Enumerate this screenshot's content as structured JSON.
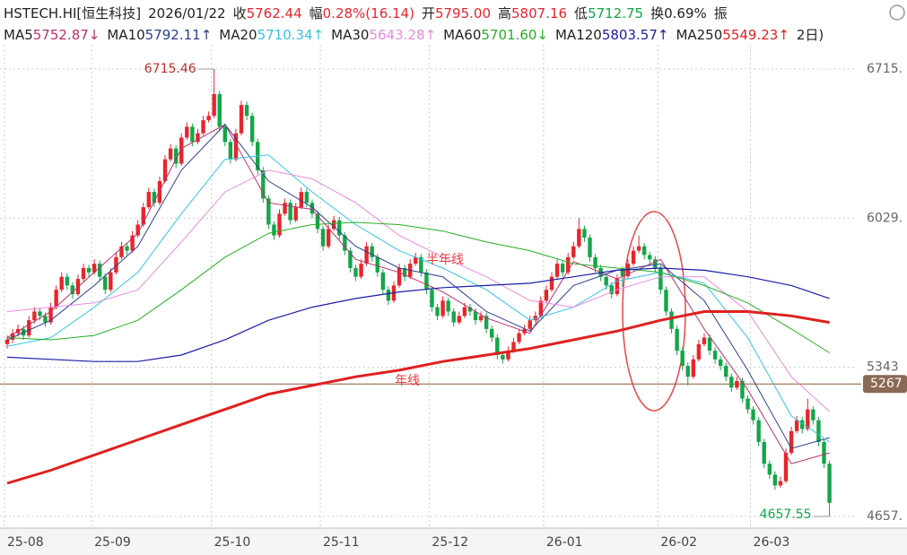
{
  "header": {
    "code": "HSTECH.HI[恒生科技]",
    "date": "2026/01/22",
    "fields": [
      {
        "label": "收",
        "value": "5762.44",
        "color": "#e8252b"
      },
      {
        "label": "幅",
        "value": "0.28%(16.14)",
        "color": "#e8252b"
      },
      {
        "label": "开",
        "value": "5795.00",
        "color": "#e8252b"
      },
      {
        "label": "高",
        "value": "5807.16",
        "color": "#e8252b"
      },
      {
        "label": "低",
        "value": "5712.75",
        "color": "#13a647"
      },
      {
        "label": "换",
        "value": "0.69%",
        "color": "#222222"
      },
      {
        "label": "振",
        "value": "",
        "color": "#222222"
      }
    ],
    "legend_tail": "2日)"
  },
  "chart_data": {
    "type": "candlestick",
    "up_color": "#e8252b",
    "down_color": "#13a647",
    "ylim": [
      4604,
      6806
    ],
    "yticks": [
      {
        "value": 6715.46,
        "label": "6715."
      },
      {
        "value": 6029.49,
        "label": "6029."
      },
      {
        "value": 5343.52,
        "label": "5343"
      },
      {
        "value": 4657.55,
        "label": "4657."
      }
    ],
    "xticks": [
      {
        "value": 0,
        "label": "25-08"
      },
      {
        "value": 16,
        "label": "25-09"
      },
      {
        "value": 38,
        "label": "25-10"
      },
      {
        "value": 58,
        "label": "25-11"
      },
      {
        "value": 78,
        "label": "25-12"
      },
      {
        "value": 99,
        "label": "26-01"
      },
      {
        "value": 120,
        "label": "26-02"
      },
      {
        "value": 137,
        "label": "26-03"
      }
    ],
    "grid": true,
    "reference_line": {
      "value": 5267,
      "label": "5267"
    },
    "annotations": [
      {
        "text": "半年线",
        "color": "#ef3b3b"
      },
      {
        "text": "年线",
        "color": "#ef3b3b"
      }
    ],
    "candles": [
      [
        5450,
        5490,
        5430,
        5470
      ],
      [
        5470,
        5520,
        5455,
        5500
      ],
      [
        5500,
        5540,
        5485,
        5520
      ],
      [
        5520,
        5535,
        5470,
        5490
      ],
      [
        5490,
        5580,
        5480,
        5560
      ],
      [
        5560,
        5620,
        5545,
        5600
      ],
      [
        5600,
        5615,
        5560,
        5580
      ],
      [
        5580,
        5595,
        5530,
        5550
      ],
      [
        5550,
        5640,
        5540,
        5620
      ],
      [
        5620,
        5720,
        5610,
        5700
      ],
      [
        5700,
        5780,
        5690,
        5760
      ],
      [
        5760,
        5775,
        5700,
        5720
      ],
      [
        5720,
        5735,
        5660,
        5680
      ],
      [
        5680,
        5770,
        5670,
        5750
      ],
      [
        5750,
        5820,
        5740,
        5800
      ],
      [
        5800,
        5815,
        5760,
        5780
      ],
      [
        5780,
        5840,
        5770,
        5820
      ],
      [
        5820,
        5835,
        5740,
        5760
      ],
      [
        5760,
        5775,
        5680,
        5700
      ],
      [
        5700,
        5800,
        5690,
        5780
      ],
      [
        5780,
        5870,
        5770,
        5850
      ],
      [
        5850,
        5920,
        5840,
        5900
      ],
      [
        5900,
        5915,
        5860,
        5880
      ],
      [
        5880,
        5970,
        5870,
        5950
      ],
      [
        5950,
        6020,
        5940,
        6000
      ],
      [
        6000,
        6100,
        5990,
        6080
      ],
      [
        6080,
        6170,
        6070,
        6150
      ],
      [
        6150,
        6165,
        6080,
        6100
      ],
      [
        6100,
        6220,
        6090,
        6200
      ],
      [
        6200,
        6320,
        6190,
        6300
      ],
      [
        6300,
        6370,
        6290,
        6350
      ],
      [
        6350,
        6365,
        6260,
        6280
      ],
      [
        6280,
        6420,
        6270,
        6400
      ],
      [
        6400,
        6470,
        6390,
        6450
      ],
      [
        6450,
        6465,
        6360,
        6380
      ],
      [
        6380,
        6440,
        6370,
        6420
      ],
      [
        6420,
        6500,
        6410,
        6480
      ],
      [
        6480,
        6520,
        6470,
        6500
      ],
      [
        6500,
        6715.46,
        6490,
        6600
      ],
      [
        6600,
        6615,
        6430,
        6450
      ],
      [
        6450,
        6465,
        6360,
        6380
      ],
      [
        6380,
        6395,
        6280,
        6300
      ],
      [
        6300,
        6440,
        6290,
        6420
      ],
      [
        6420,
        6570,
        6410,
        6550
      ],
      [
        6550,
        6565,
        6480,
        6500
      ],
      [
        6500,
        6515,
        6360,
        6380
      ],
      [
        6380,
        6395,
        6230,
        6250
      ],
      [
        6250,
        6265,
        6100,
        6120
      ],
      [
        6120,
        6135,
        5980,
        6000
      ],
      [
        6000,
        6015,
        5930,
        5950
      ],
      [
        5950,
        6070,
        5940,
        6050
      ],
      [
        6050,
        6120,
        6040,
        6100
      ],
      [
        6100,
        6115,
        6000,
        6020
      ],
      [
        6020,
        6100,
        6010,
        6080
      ],
      [
        6080,
        6170,
        6070,
        6150
      ],
      [
        6150,
        6165,
        6080,
        6100
      ],
      [
        6100,
        6115,
        6030,
        6050
      ],
      [
        6050,
        6065,
        5960,
        5980
      ],
      [
        5980,
        5995,
        5880,
        5900
      ],
      [
        5900,
        6000,
        5890,
        5980
      ],
      [
        5980,
        6040,
        5970,
        6020
      ],
      [
        6020,
        6035,
        5930,
        5950
      ],
      [
        5950,
        5965,
        5860,
        5880
      ],
      [
        5880,
        5895,
        5780,
        5800
      ],
      [
        5800,
        5815,
        5740,
        5760
      ],
      [
        5760,
        5840,
        5750,
        5820
      ],
      [
        5820,
        5920,
        5810,
        5900
      ],
      [
        5900,
        5915,
        5830,
        5850
      ],
      [
        5850,
        5865,
        5760,
        5780
      ],
      [
        5780,
        5795,
        5680,
        5700
      ],
      [
        5700,
        5715,
        5630,
        5650
      ],
      [
        5650,
        5740,
        5640,
        5720
      ],
      [
        5720,
        5820,
        5710,
        5800
      ],
      [
        5800,
        5815,
        5740,
        5760
      ],
      [
        5760,
        5840,
        5750,
        5820
      ],
      [
        5820,
        5870,
        5810,
        5850
      ],
      [
        5850,
        5865,
        5760,
        5780
      ],
      [
        5780,
        5795,
        5680,
        5700
      ],
      [
        5700,
        5715,
        5600,
        5620
      ],
      [
        5620,
        5635,
        5560,
        5580
      ],
      [
        5580,
        5670,
        5570,
        5650
      ],
      [
        5650,
        5665,
        5580,
        5600
      ],
      [
        5600,
        5615,
        5530,
        5550
      ],
      [
        5550,
        5600,
        5540,
        5580
      ],
      [
        5580,
        5640,
        5570,
        5620
      ],
      [
        5620,
        5635,
        5580,
        5600
      ],
      [
        5600,
        5615,
        5540,
        5560
      ],
      [
        5560,
        5600,
        5550,
        5580
      ],
      [
        5580,
        5595,
        5500,
        5520
      ],
      [
        5520,
        5535,
        5460,
        5480
      ],
      [
        5480,
        5495,
        5380,
        5400
      ],
      [
        5400,
        5415,
        5360,
        5380
      ],
      [
        5380,
        5440,
        5370,
        5420
      ],
      [
        5420,
        5480,
        5410,
        5460
      ],
      [
        5460,
        5520,
        5450,
        5500
      ],
      [
        5500,
        5540,
        5490,
        5520
      ],
      [
        5520,
        5580,
        5510,
        5560
      ],
      [
        5560,
        5600,
        5550,
        5580
      ],
      [
        5580,
        5670,
        5570,
        5650
      ],
      [
        5650,
        5720,
        5640,
        5700
      ],
      [
        5700,
        5780,
        5690,
        5760
      ],
      [
        5760,
        5840,
        5750,
        5820
      ],
      [
        5820,
        5835,
        5760,
        5780
      ],
      [
        5780,
        5870,
        5770,
        5850
      ],
      [
        5850,
        5920,
        5840,
        5900
      ],
      [
        5900,
        6030,
        5890,
        5980
      ],
      [
        5980,
        5995,
        5920,
        5940
      ],
      [
        5940,
        5955,
        5830,
        5850
      ],
      [
        5850,
        5865,
        5780,
        5800
      ],
      [
        5800,
        5815,
        5740,
        5760
      ],
      [
        5760,
        5775,
        5700,
        5720
      ],
      [
        5720,
        5735,
        5660,
        5680
      ],
      [
        5680,
        5770,
        5670,
        5750
      ],
      [
        5795,
        5807.16,
        5712.75,
        5762.44
      ],
      [
        5762.44,
        5840,
        5750,
        5820
      ],
      [
        5820,
        5900,
        5810,
        5880
      ],
      [
        5880,
        5950,
        5870,
        5900
      ],
      [
        5900,
        5915,
        5840,
        5860
      ],
      [
        5860,
        5875,
        5820,
        5840
      ],
      [
        5840,
        5855,
        5780,
        5800
      ],
      [
        5800,
        5815,
        5680,
        5700
      ],
      [
        5700,
        5715,
        5580,
        5600
      ],
      [
        5600,
        5615,
        5500,
        5520
      ],
      [
        5520,
        5535,
        5400,
        5420
      ],
      [
        5420,
        5435,
        5330,
        5350
      ],
      [
        5350,
        5365,
        5260,
        5300
      ],
      [
        5300,
        5400,
        5290,
        5380
      ],
      [
        5380,
        5470,
        5370,
        5450
      ],
      [
        5450,
        5500,
        5440,
        5480
      ],
      [
        5480,
        5495,
        5400,
        5420
      ],
      [
        5420,
        5435,
        5360,
        5380
      ],
      [
        5380,
        5395,
        5330,
        5350
      ],
      [
        5350,
        5365,
        5280,
        5300
      ],
      [
        5300,
        5315,
        5230,
        5250
      ],
      [
        5250,
        5300,
        5240,
        5280
      ],
      [
        5280,
        5295,
        5180,
        5200
      ],
      [
        5200,
        5215,
        5130,
        5150
      ],
      [
        5150,
        5165,
        5080,
        5100
      ],
      [
        5100,
        5115,
        4980,
        5000
      ],
      [
        5000,
        5015,
        4880,
        4900
      ],
      [
        4900,
        4915,
        4830,
        4850
      ],
      [
        4850,
        4865,
        4780,
        4800
      ],
      [
        4800,
        4840,
        4790,
        4820
      ],
      [
        4820,
        4970,
        4810,
        4950
      ],
      [
        4950,
        5070,
        4940,
        5050
      ],
      [
        5050,
        5120,
        5040,
        5100
      ],
      [
        5100,
        5115,
        5040,
        5060
      ],
      [
        5060,
        5200,
        5050,
        5150
      ],
      [
        5150,
        5165,
        5080,
        5100
      ],
      [
        5100,
        5115,
        4980,
        5000
      ],
      [
        5000,
        5015,
        4880,
        4900
      ],
      [
        4900,
        4915,
        4657.55,
        4720
      ]
    ],
    "series": [
      {
        "name": "MA5",
        "legend_value": "5752.87",
        "trend": "↓",
        "color": "#b8306e",
        "width": 1,
        "x": [
          0,
          8,
          16,
          24,
          32,
          40,
          48,
          56,
          64,
          72,
          80,
          88,
          96,
          104,
          112,
          120,
          128,
          136,
          144,
          151
        ],
        "values": [
          5480,
          5600,
          5780,
          5960,
          6350,
          6460,
          6100,
          6070,
          5840,
          5780,
          5690,
          5570,
          5500,
          5830,
          5750,
          5840,
          5520,
          5240,
          4900,
          4950
        ]
      },
      {
        "name": "MA10",
        "legend_value": "5792.11",
        "trend": "↑",
        "color": "#2c3f8f",
        "width": 1,
        "x": [
          0,
          8,
          16,
          24,
          32,
          40,
          48,
          56,
          64,
          72,
          80,
          88,
          96,
          104,
          112,
          120,
          128,
          136,
          144,
          151
        ],
        "values": [
          5470,
          5560,
          5720,
          5900,
          6250,
          6460,
          6200,
          6080,
          5900,
          5800,
          5760,
          5600,
          5510,
          5720,
          5790,
          5820,
          5650,
          5330,
          4970,
          5020
        ]
      },
      {
        "name": "MA20",
        "legend_value": "5710.34",
        "trend": "↑",
        "color": "#34c3e6",
        "width": 1,
        "x": [
          0,
          8,
          16,
          24,
          32,
          40,
          48,
          56,
          64,
          72,
          80,
          88,
          96,
          104,
          112,
          120,
          128,
          136,
          144,
          151
        ],
        "values": [
          5440,
          5480,
          5620,
          5780,
          6050,
          6300,
          6320,
          6150,
          6000,
          5880,
          5800,
          5700,
          5560,
          5620,
          5740,
          5780,
          5730,
          5480,
          5120,
          5000
        ]
      },
      {
        "name": "MA30",
        "legend_value": "5643.28",
        "trend": "↑",
        "color": "#e88ae0",
        "width": 1,
        "x": [
          0,
          8,
          16,
          24,
          32,
          40,
          48,
          56,
          64,
          72,
          80,
          88,
          96,
          104,
          112,
          120,
          128,
          136,
          144,
          151
        ],
        "values": [
          5600,
          5620,
          5640,
          5700,
          5920,
          6150,
          6250,
          6210,
          6100,
          5950,
          5850,
          5760,
          5650,
          5620,
          5700,
          5760,
          5760,
          5600,
          5300,
          5140
        ]
      },
      {
        "name": "MA60",
        "legend_value": "5701.60",
        "trend": "↓",
        "color": "#24b024",
        "width": 1,
        "x": [
          0,
          8,
          16,
          24,
          32,
          40,
          48,
          56,
          64,
          72,
          80,
          88,
          96,
          104,
          112,
          120,
          128,
          136,
          144,
          151
        ],
        "values": [
          5480,
          5470,
          5490,
          5560,
          5700,
          5850,
          5960,
          6000,
          6010,
          6000,
          5970,
          5920,
          5880,
          5820,
          5800,
          5780,
          5720,
          5640,
          5520,
          5410
        ]
      },
      {
        "name": "MA120",
        "legend_value": "5803.57",
        "trend": "↑",
        "color": "#1c1ca8",
        "width": 1.2,
        "x": [
          0,
          8,
          16,
          24,
          32,
          40,
          48,
          56,
          64,
          72,
          80,
          88,
          96,
          104,
          112,
          120,
          128,
          136,
          144,
          151
        ],
        "values": [
          5390,
          5380,
          5370,
          5370,
          5400,
          5470,
          5560,
          5620,
          5660,
          5690,
          5710,
          5720,
          5730,
          5760,
          5790,
          5800,
          5790,
          5760,
          5720,
          5660
        ]
      },
      {
        "name": "MA250",
        "legend_value": "5549.23",
        "trend": "↑",
        "color": "#e02020",
        "width": 3,
        "x": [
          0,
          8,
          16,
          24,
          32,
          40,
          48,
          56,
          64,
          72,
          80,
          88,
          96,
          104,
          112,
          120,
          128,
          136,
          144,
          151
        ],
        "values": [
          4810,
          4870,
          4940,
          5010,
          5080,
          5150,
          5220,
          5260,
          5300,
          5330,
          5370,
          5400,
          5430,
          5470,
          5510,
          5560,
          5600,
          5600,
          5580,
          5550
        ]
      }
    ]
  }
}
